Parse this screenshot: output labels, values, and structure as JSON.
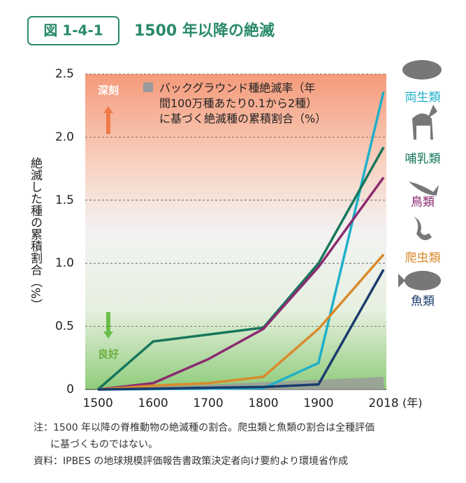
{
  "header": {
    "figure_number": "図 1-4-1",
    "title": "1500 年以降の絶滅"
  },
  "chart_data": {
    "type": "line",
    "ylabel": "絶滅した種の累積割合（%）",
    "xlabel": "(年)",
    "xlim": [
      1477,
      2023
    ],
    "ylim": [
      0,
      2.5
    ],
    "xticks": [
      1500,
      1600,
      1700,
      1800,
      1900,
      2018
    ],
    "yticks": [
      0,
      0.5,
      {
        "value": 1,
        "label": "1.0"
      },
      1.5,
      {
        "value": 2,
        "label": "2.0"
      },
      2.5
    ],
    "grid": true,
    "annotations": {
      "top": "深刻",
      "bottom": "良好"
    },
    "background_rate": {
      "label_lines": [
        "バックグラウンド種絶滅率（年",
        "間100万種あたり0.1から2種）",
        "に基づく絶滅種の累積割合（%）"
      ],
      "color": "#9a9a9a",
      "x": [
        1500,
        2018
      ],
      "values": [
        0,
        0.1
      ]
    },
    "series": [
      {
        "name": "両生類",
        "color": "#1fb0c9",
        "x": [
          1500,
          1800,
          1900,
          2018
        ],
        "values": [
          0,
          0.01,
          0.21,
          2.36
        ]
      },
      {
        "name": "哺乳類",
        "color": "#17775c",
        "x": [
          1500,
          1600,
          1800,
          1900,
          2018
        ],
        "values": [
          0,
          0.38,
          0.49,
          1.0,
          1.92
        ]
      },
      {
        "name": "鳥類",
        "color": "#8b2b70",
        "x": [
          1500,
          1600,
          1700,
          1800,
          1900,
          2018
        ],
        "values": [
          0,
          0.05,
          0.24,
          0.48,
          0.97,
          1.68
        ]
      },
      {
        "name": "爬虫類",
        "color": "#d98a2c",
        "x": [
          1500,
          1600,
          1700,
          1800,
          1900,
          2018
        ],
        "values": [
          0,
          0.03,
          0.05,
          0.1,
          0.48,
          1.07
        ]
      },
      {
        "name": "魚類",
        "color": "#1b3c6e",
        "x": [
          1500,
          1800,
          1900,
          2018
        ],
        "values": [
          0,
          0.02,
          0.04,
          0.95
        ]
      }
    ]
  },
  "notes": [
    "注：1500 年以降の脊椎動物の絶滅種の割合。爬虫類と魚類の割合は全種評価",
    "に基づくものではない。"
  ],
  "source": "資料：IPBES の地球規模評価報告書政策決定者向け要約より環境省作成"
}
